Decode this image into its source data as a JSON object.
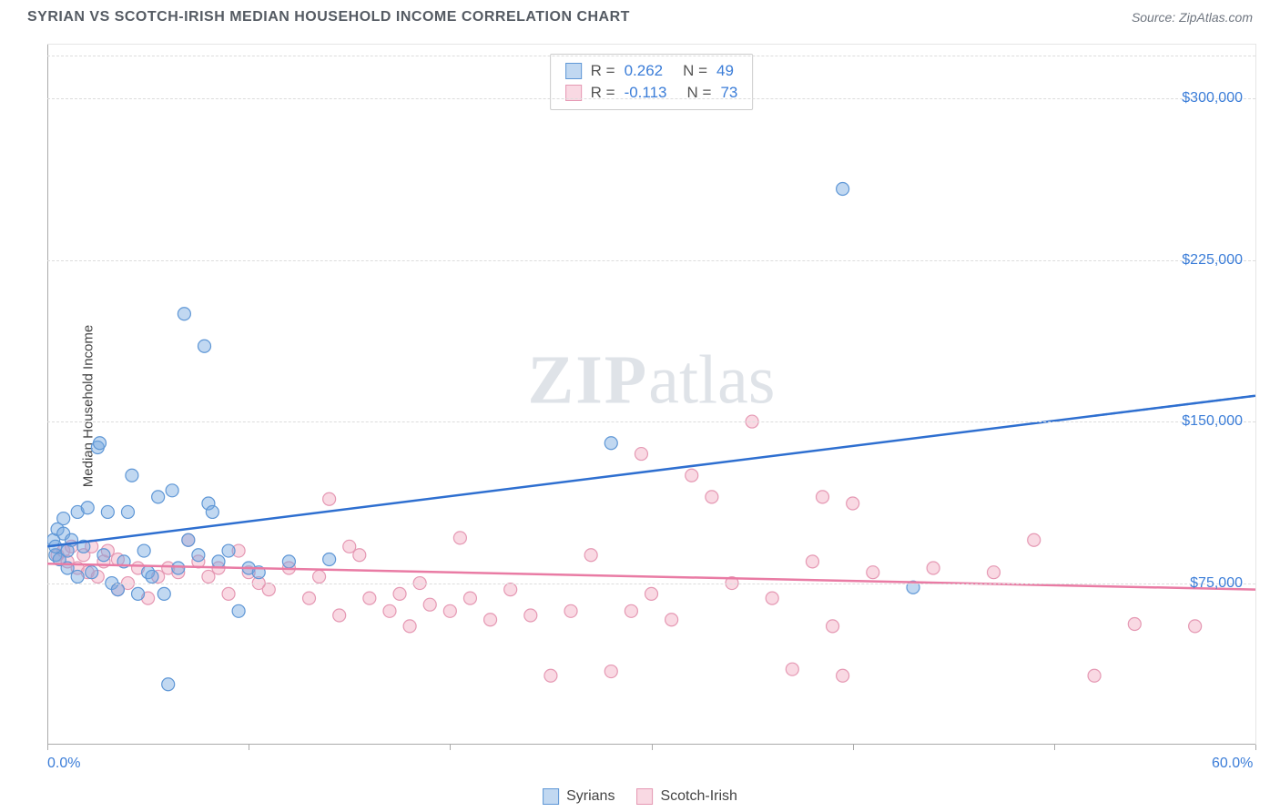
{
  "title": "SYRIAN VS SCOTCH-IRISH MEDIAN HOUSEHOLD INCOME CORRELATION CHART",
  "source": "Source: ZipAtlas.com",
  "watermark": {
    "bold": "ZIP",
    "rest": "atlas"
  },
  "y_axis_label": "Median Household Income",
  "chart": {
    "type": "scatter",
    "xlim": [
      0,
      60
    ],
    "ylim": [
      0,
      325000
    ],
    "x_ticks": [
      0,
      10,
      20,
      30,
      40,
      50,
      60
    ],
    "x_tick_labels": {
      "0": "0.0%",
      "60": "60.0%"
    },
    "y_gridlines": [
      75000,
      150000,
      225000,
      300000
    ],
    "y_tick_labels": [
      "$75,000",
      "$150,000",
      "$225,000",
      "$300,000"
    ],
    "background_color": "#ffffff",
    "grid_color": "#dcdcdc",
    "marker_radius": 7,
    "marker_stroke_width": 1.2,
    "trend_line_width": 2.5,
    "series": [
      {
        "name": "Syrians",
        "fill": "rgba(118,168,224,0.45)",
        "stroke": "#5f97d6",
        "trend_color": "#2e6fd0",
        "trend": {
          "x1": 0,
          "y1": 92000,
          "x2": 60,
          "y2": 162000
        },
        "R_label": "R =",
        "R_value": "0.262",
        "N_label": "N =",
        "N_value": "49",
        "points": [
          [
            0.3,
            95000
          ],
          [
            0.4,
            88000
          ],
          [
            0.4,
            92000
          ],
          [
            0.5,
            100000
          ],
          [
            0.6,
            86000
          ],
          [
            0.8,
            105000
          ],
          [
            0.8,
            98000
          ],
          [
            1.0,
            90000
          ],
          [
            1.0,
            82000
          ],
          [
            1.2,
            95000
          ],
          [
            1.5,
            108000
          ],
          [
            1.5,
            78000
          ],
          [
            1.8,
            92000
          ],
          [
            2.0,
            110000
          ],
          [
            2.2,
            80000
          ],
          [
            2.5,
            138000
          ],
          [
            2.6,
            140000
          ],
          [
            2.8,
            88000
          ],
          [
            3.0,
            108000
          ],
          [
            3.2,
            75000
          ],
          [
            3.5,
            72000
          ],
          [
            3.8,
            85000
          ],
          [
            4.0,
            108000
          ],
          [
            4.2,
            125000
          ],
          [
            4.5,
            70000
          ],
          [
            4.8,
            90000
          ],
          [
            5.0,
            80000
          ],
          [
            5.2,
            78000
          ],
          [
            5.5,
            115000
          ],
          [
            5.8,
            70000
          ],
          [
            6.0,
            28000
          ],
          [
            6.2,
            118000
          ],
          [
            6.5,
            82000
          ],
          [
            6.8,
            200000
          ],
          [
            7.0,
            95000
          ],
          [
            7.5,
            88000
          ],
          [
            7.8,
            185000
          ],
          [
            8.0,
            112000
          ],
          [
            8.2,
            108000
          ],
          [
            8.5,
            85000
          ],
          [
            9.0,
            90000
          ],
          [
            9.5,
            62000
          ],
          [
            10.0,
            82000
          ],
          [
            10.5,
            80000
          ],
          [
            12.0,
            85000
          ],
          [
            14.0,
            86000
          ],
          [
            28.0,
            140000
          ],
          [
            39.5,
            258000
          ],
          [
            43.0,
            73000
          ]
        ]
      },
      {
        "name": "Scotch-Irish",
        "fill": "rgba(240,160,185,0.40)",
        "stroke": "#e598b3",
        "trend_color": "#e97ba4",
        "trend": {
          "x1": 0,
          "y1": 84000,
          "x2": 60,
          "y2": 72000
        },
        "R_label": "R =",
        "R_value": "-0.113",
        "N_label": "N =",
        "N_value": "73",
        "points": [
          [
            0.5,
            88000
          ],
          [
            0.8,
            90000
          ],
          [
            1.0,
            85000
          ],
          [
            1.2,
            92000
          ],
          [
            1.5,
            82000
          ],
          [
            1.8,
            88000
          ],
          [
            2.0,
            80000
          ],
          [
            2.2,
            92000
          ],
          [
            2.5,
            78000
          ],
          [
            2.8,
            85000
          ],
          [
            3.0,
            90000
          ],
          [
            3.5,
            72000
          ],
          [
            3.5,
            86000
          ],
          [
            4.0,
            75000
          ],
          [
            4.5,
            82000
          ],
          [
            5.0,
            68000
          ],
          [
            5.5,
            78000
          ],
          [
            6.0,
            82000
          ],
          [
            6.5,
            80000
          ],
          [
            7.0,
            95000
          ],
          [
            7.5,
            85000
          ],
          [
            8.0,
            78000
          ],
          [
            8.5,
            82000
          ],
          [
            9.0,
            70000
          ],
          [
            9.5,
            90000
          ],
          [
            10.0,
            80000
          ],
          [
            10.5,
            75000
          ],
          [
            11.0,
            72000
          ],
          [
            12.0,
            82000
          ],
          [
            13.0,
            68000
          ],
          [
            13.5,
            78000
          ],
          [
            14.0,
            114000
          ],
          [
            14.5,
            60000
          ],
          [
            15.0,
            92000
          ],
          [
            15.5,
            88000
          ],
          [
            16.0,
            68000
          ],
          [
            17.0,
            62000
          ],
          [
            17.5,
            70000
          ],
          [
            18.0,
            55000
          ],
          [
            18.5,
            75000
          ],
          [
            19.0,
            65000
          ],
          [
            20.0,
            62000
          ],
          [
            20.5,
            96000
          ],
          [
            21.0,
            68000
          ],
          [
            22.0,
            58000
          ],
          [
            23.0,
            72000
          ],
          [
            24.0,
            60000
          ],
          [
            25.0,
            32000
          ],
          [
            26.0,
            62000
          ],
          [
            27.0,
            88000
          ],
          [
            28.0,
            34000
          ],
          [
            29.0,
            62000
          ],
          [
            29.5,
            135000
          ],
          [
            30.0,
            70000
          ],
          [
            31.0,
            58000
          ],
          [
            32.0,
            125000
          ],
          [
            33.0,
            115000
          ],
          [
            34.0,
            75000
          ],
          [
            35.0,
            150000
          ],
          [
            36.0,
            68000
          ],
          [
            37.0,
            35000
          ],
          [
            38.0,
            85000
          ],
          [
            38.5,
            115000
          ],
          [
            39.0,
            55000
          ],
          [
            39.5,
            32000
          ],
          [
            40.0,
            112000
          ],
          [
            41.0,
            80000
          ],
          [
            44.0,
            82000
          ],
          [
            47.0,
            80000
          ],
          [
            49.0,
            95000
          ],
          [
            52.0,
            32000
          ],
          [
            54.0,
            56000
          ],
          [
            57.0,
            55000
          ]
        ]
      }
    ]
  },
  "bottom_legend": [
    {
      "label": "Syrians",
      "fill": "rgba(118,168,224,0.45)",
      "stroke": "#5f97d6"
    },
    {
      "label": "Scotch-Irish",
      "fill": "rgba(240,160,185,0.40)",
      "stroke": "#e598b3"
    }
  ]
}
